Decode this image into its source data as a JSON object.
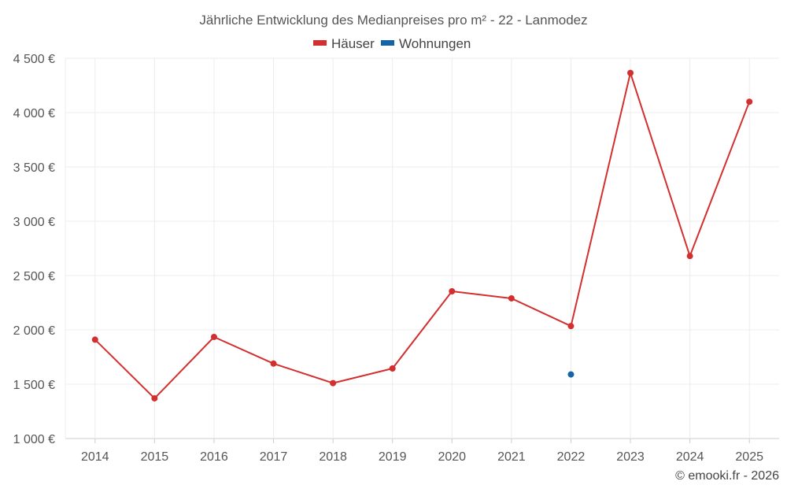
{
  "chart_data": {
    "type": "line",
    "title": "Jährliche Entwicklung des Medianpreises pro m² - 22 - Lanmodez",
    "categories": [
      "2014",
      "2015",
      "2016",
      "2017",
      "2018",
      "2019",
      "2020",
      "2021",
      "2022",
      "2023",
      "2024",
      "2025"
    ],
    "series": [
      {
        "name": "Häuser",
        "color": "#d32f2f",
        "values": [
          1910,
          1370,
          1935,
          1690,
          1510,
          1645,
          2355,
          2290,
          2035,
          4365,
          2680,
          4100
        ]
      },
      {
        "name": "Wohnungen",
        "color": "#1565a6",
        "values": [
          null,
          null,
          null,
          null,
          null,
          null,
          null,
          null,
          1590,
          null,
          null,
          null
        ]
      }
    ],
    "ylim": [
      1000,
      4500
    ],
    "yticks": [
      1000,
      1500,
      2000,
      2500,
      3000,
      3500,
      4000,
      4500
    ],
    "ytick_labels": [
      "1 000 €",
      "1 500 €",
      "2 000 €",
      "2 500 €",
      "3 000 €",
      "3 500 €",
      "4 000 €",
      "4 500 €"
    ],
    "xlabel": "",
    "ylabel": "",
    "grid": true,
    "legend": "top-center"
  },
  "credit": "© emooki.fr - 2026"
}
